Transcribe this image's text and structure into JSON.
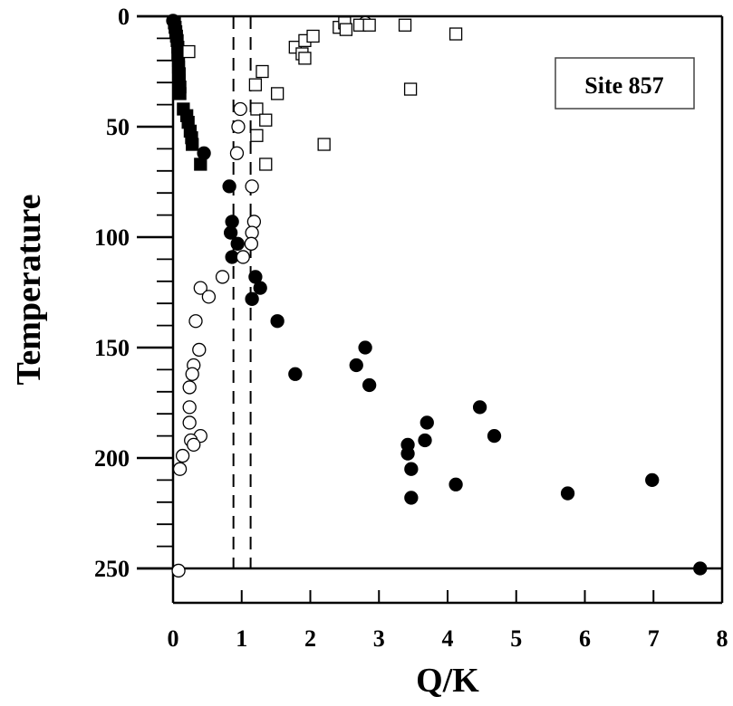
{
  "chart_data": {
    "type": "scatter",
    "title": "",
    "xlabel": "Q/K",
    "ylabel": "Temperature",
    "xlim": [
      0,
      8
    ],
    "ylim": [
      0,
      250
    ],
    "y_inverted": true,
    "x_ticks": [
      "0",
      "1",
      "2",
      "3",
      "4",
      "5",
      "6",
      "7",
      "8"
    ],
    "y_ticks": [
      "0",
      "50",
      "100",
      "150",
      "200",
      "250"
    ],
    "legend_box": {
      "text": "Site 857",
      "placement": "top-right"
    },
    "reference_lines": [
      {
        "orientation": "vertical",
        "x": 0.88,
        "style": "dashed"
      },
      {
        "orientation": "vertical",
        "x": 1.13,
        "style": "dashed"
      }
    ],
    "grid": false,
    "series": [
      {
        "marker": "filled-square",
        "points": [
          [
            0.02,
            3
          ],
          [
            0.03,
            5
          ],
          [
            0.04,
            7
          ],
          [
            0.05,
            9
          ],
          [
            0.06,
            11
          ],
          [
            0.07,
            14
          ],
          [
            0.07,
            17
          ],
          [
            0.08,
            20
          ],
          [
            0.08,
            23
          ],
          [
            0.09,
            26
          ],
          [
            0.09,
            29
          ],
          [
            0.1,
            32
          ],
          [
            0.1,
            35
          ],
          [
            0.15,
            42
          ],
          [
            0.2,
            45
          ],
          [
            0.22,
            48
          ],
          [
            0.25,
            52
          ],
          [
            0.27,
            55
          ],
          [
            0.28,
            58
          ],
          [
            0.4,
            67
          ]
        ]
      },
      {
        "marker": "filled-circle",
        "points": [
          [
            0.0,
            2
          ],
          [
            0.45,
            62
          ],
          [
            0.82,
            77
          ],
          [
            0.86,
            93
          ],
          [
            0.84,
            98
          ],
          [
            0.94,
            103
          ],
          [
            0.86,
            109
          ],
          [
            1.2,
            118
          ],
          [
            1.27,
            123
          ],
          [
            1.15,
            128
          ],
          [
            1.52,
            138
          ],
          [
            1.78,
            162
          ],
          [
            2.67,
            158
          ],
          [
            2.8,
            150
          ],
          [
            2.86,
            167
          ],
          [
            3.42,
            194
          ],
          [
            3.42,
            198
          ],
          [
            3.47,
            205
          ],
          [
            3.47,
            218
          ],
          [
            3.67,
            192
          ],
          [
            3.7,
            184
          ],
          [
            4.12,
            212
          ],
          [
            4.47,
            177
          ],
          [
            4.68,
            190
          ],
          [
            5.75,
            216
          ],
          [
            6.98,
            210
          ],
          [
            7.68,
            250
          ]
        ]
      },
      {
        "marker": "open-circle",
        "points": [
          [
            0.98,
            42
          ],
          [
            0.95,
            50
          ],
          [
            0.93,
            62
          ],
          [
            1.15,
            77
          ],
          [
            1.18,
            93
          ],
          [
            1.15,
            98
          ],
          [
            1.14,
            103
          ],
          [
            1.02,
            109
          ],
          [
            0.72,
            118
          ],
          [
            0.4,
            123
          ],
          [
            0.52,
            127
          ],
          [
            0.33,
            138
          ],
          [
            0.38,
            151
          ],
          [
            0.3,
            158
          ],
          [
            0.28,
            162
          ],
          [
            0.24,
            168
          ],
          [
            0.24,
            177
          ],
          [
            0.24,
            184
          ],
          [
            0.4,
            190
          ],
          [
            0.26,
            192
          ],
          [
            0.3,
            194
          ],
          [
            0.14,
            199
          ],
          [
            0.1,
            205
          ],
          [
            0.08,
            251
          ],
          [
            2.8,
            3
          ]
        ]
      },
      {
        "marker": "open-square",
        "points": [
          [
            0.23,
            16
          ],
          [
            1.2,
            31
          ],
          [
            1.3,
            25
          ],
          [
            1.52,
            35
          ],
          [
            1.22,
            42
          ],
          [
            1.35,
            47
          ],
          [
            1.22,
            54
          ],
          [
            1.35,
            67
          ],
          [
            1.78,
            14
          ],
          [
            1.88,
            17
          ],
          [
            1.92,
            19
          ],
          [
            1.92,
            11
          ],
          [
            2.04,
            9
          ],
          [
            2.2,
            58
          ],
          [
            2.42,
            5
          ],
          [
            2.5,
            3
          ],
          [
            2.52,
            6
          ],
          [
            2.72,
            4
          ],
          [
            2.86,
            4
          ],
          [
            3.38,
            4
          ],
          [
            3.46,
            33
          ],
          [
            4.12,
            8
          ]
        ]
      }
    ]
  }
}
